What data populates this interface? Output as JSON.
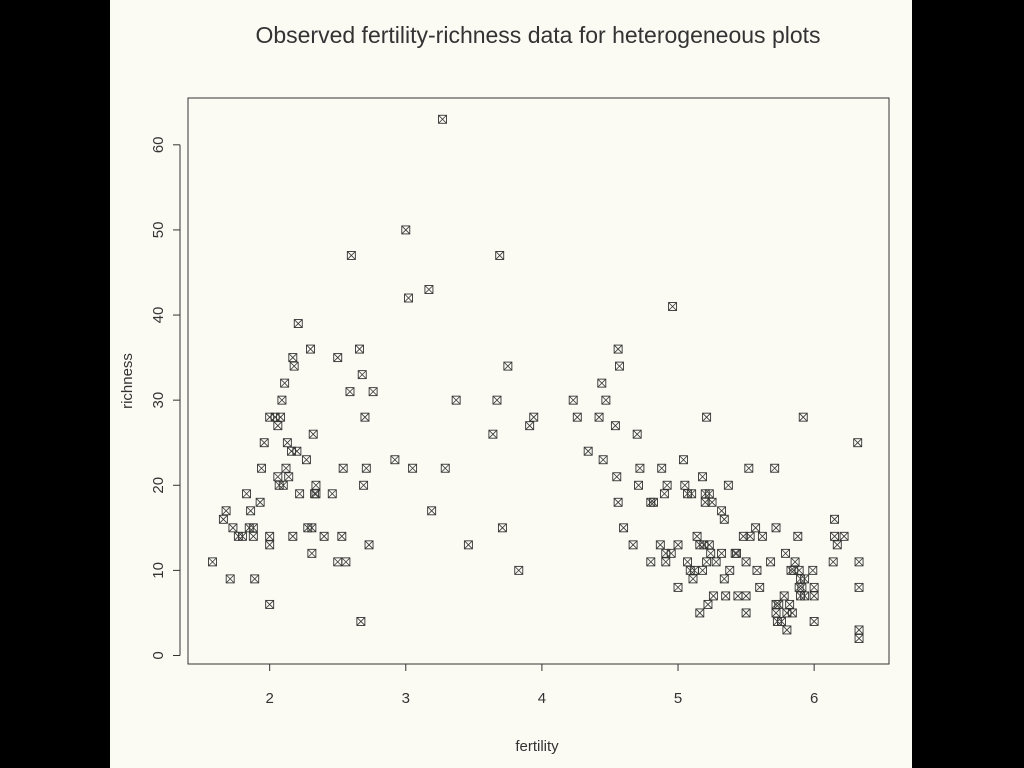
{
  "chart_data": {
    "type": "scatter",
    "title": "Observed fertility-richness data for heterogeneous plots",
    "xlabel": "fertility",
    "ylabel": "richness",
    "xlim": [
      1.4,
      6.55
    ],
    "ylim": [
      -1,
      65.5
    ],
    "xticks": [
      2,
      3,
      4,
      5,
      6
    ],
    "yticks": [
      0,
      10,
      20,
      30,
      40,
      50,
      60
    ],
    "marker": "boxed-x",
    "grid": false,
    "legend": "none",
    "colors": {
      "background": "#fbfbf4",
      "ink": "#333333",
      "frame": "#000000"
    },
    "points": [
      [
        1.58,
        11
      ],
      [
        1.66,
        16
      ],
      [
        1.68,
        17
      ],
      [
        1.71,
        9
      ],
      [
        1.73,
        15
      ],
      [
        1.77,
        14
      ],
      [
        1.8,
        14
      ],
      [
        1.83,
        19
      ],
      [
        1.85,
        15
      ],
      [
        1.86,
        17
      ],
      [
        1.88,
        15
      ],
      [
        1.88,
        14
      ],
      [
        1.89,
        9
      ],
      [
        1.93,
        18
      ],
      [
        1.94,
        22
      ],
      [
        1.96,
        25
      ],
      [
        2.0,
        28
      ],
      [
        2.0,
        14
      ],
      [
        2.0,
        13
      ],
      [
        2.0,
        6
      ],
      [
        2.04,
        28
      ],
      [
        2.06,
        27
      ],
      [
        2.06,
        21
      ],
      [
        2.07,
        20
      ],
      [
        2.08,
        28
      ],
      [
        2.09,
        30
      ],
      [
        2.1,
        20
      ],
      [
        2.11,
        32
      ],
      [
        2.12,
        22
      ],
      [
        2.13,
        25
      ],
      [
        2.14,
        21
      ],
      [
        2.16,
        24
      ],
      [
        2.17,
        14
      ],
      [
        2.17,
        35
      ],
      [
        2.18,
        34
      ],
      [
        2.2,
        24
      ],
      [
        2.21,
        39
      ],
      [
        2.22,
        19
      ],
      [
        2.27,
        23
      ],
      [
        2.28,
        15
      ],
      [
        2.3,
        36
      ],
      [
        2.31,
        15
      ],
      [
        2.31,
        12
      ],
      [
        2.32,
        26
      ],
      [
        2.33,
        19
      ],
      [
        2.34,
        20
      ],
      [
        2.34,
        19
      ],
      [
        2.4,
        14
      ],
      [
        2.46,
        19
      ],
      [
        2.5,
        35
      ],
      [
        2.5,
        11
      ],
      [
        2.53,
        14
      ],
      [
        2.54,
        22
      ],
      [
        2.56,
        11
      ],
      [
        2.59,
        31
      ],
      [
        2.6,
        47
      ],
      [
        2.66,
        36
      ],
      [
        2.67,
        4
      ],
      [
        2.68,
        33
      ],
      [
        2.69,
        20
      ],
      [
        2.7,
        28
      ],
      [
        2.71,
        22
      ],
      [
        2.73,
        13
      ],
      [
        2.76,
        31
      ],
      [
        2.92,
        23
      ],
      [
        3.0,
        50
      ],
      [
        3.02,
        42
      ],
      [
        3.05,
        22
      ],
      [
        3.17,
        43
      ],
      [
        3.19,
        17
      ],
      [
        3.27,
        63
      ],
      [
        3.29,
        22
      ],
      [
        3.37,
        30
      ],
      [
        3.46,
        13
      ],
      [
        3.64,
        26
      ],
      [
        3.67,
        30
      ],
      [
        3.69,
        47
      ],
      [
        3.71,
        15
      ],
      [
        3.75,
        34
      ],
      [
        3.83,
        10
      ],
      [
        3.91,
        27
      ],
      [
        3.94,
        28
      ],
      [
        4.23,
        30
      ],
      [
        4.26,
        28
      ],
      [
        4.34,
        24
      ],
      [
        4.42,
        28
      ],
      [
        4.44,
        32
      ],
      [
        4.45,
        23
      ],
      [
        4.47,
        30
      ],
      [
        4.54,
        27
      ],
      [
        4.55,
        21
      ],
      [
        4.56,
        18
      ],
      [
        4.56,
        36
      ],
      [
        4.57,
        34
      ],
      [
        4.6,
        15
      ],
      [
        4.67,
        13
      ],
      [
        4.7,
        26
      ],
      [
        4.71,
        20
      ],
      [
        4.72,
        22
      ],
      [
        4.8,
        11
      ],
      [
        4.8,
        18
      ],
      [
        4.82,
        18
      ],
      [
        4.87,
        13
      ],
      [
        4.88,
        22
      ],
      [
        4.9,
        19
      ],
      [
        4.91,
        11
      ],
      [
        4.91,
        12
      ],
      [
        4.92,
        20
      ],
      [
        4.95,
        12
      ],
      [
        4.96,
        41
      ],
      [
        5.0,
        8
      ],
      [
        5.0,
        13
      ],
      [
        5.04,
        23
      ],
      [
        5.05,
        20
      ],
      [
        5.07,
        11
      ],
      [
        5.07,
        19
      ],
      [
        5.09,
        10
      ],
      [
        5.1,
        19
      ],
      [
        5.11,
        9
      ],
      [
        5.12,
        10
      ],
      [
        5.14,
        14
      ],
      [
        5.16,
        5
      ],
      [
        5.16,
        13
      ],
      [
        5.18,
        21
      ],
      [
        5.18,
        10
      ],
      [
        5.19,
        13
      ],
      [
        5.2,
        19
      ],
      [
        5.2,
        18
      ],
      [
        5.21,
        28
      ],
      [
        5.21,
        11
      ],
      [
        5.22,
        6
      ],
      [
        5.23,
        19
      ],
      [
        5.23,
        13
      ],
      [
        5.24,
        12
      ],
      [
        5.25,
        18
      ],
      [
        5.26,
        7
      ],
      [
        5.28,
        11
      ],
      [
        5.32,
        17
      ],
      [
        5.32,
        12
      ],
      [
        5.34,
        16
      ],
      [
        5.34,
        9
      ],
      [
        5.35,
        7
      ],
      [
        5.37,
        20
      ],
      [
        5.38,
        10
      ],
      [
        5.42,
        12
      ],
      [
        5.43,
        12
      ],
      [
        5.44,
        7
      ],
      [
        5.48,
        14
      ],
      [
        5.5,
        11
      ],
      [
        5.5,
        7
      ],
      [
        5.5,
        5
      ],
      [
        5.52,
        22
      ],
      [
        5.53,
        14
      ],
      [
        5.57,
        15
      ],
      [
        5.58,
        10
      ],
      [
        5.6,
        8
      ],
      [
        5.62,
        14
      ],
      [
        5.68,
        11
      ],
      [
        5.71,
        22
      ],
      [
        5.72,
        15
      ],
      [
        5.72,
        6
      ],
      [
        5.72,
        5
      ],
      [
        5.73,
        4
      ],
      [
        5.74,
        6
      ],
      [
        5.76,
        4
      ],
      [
        5.78,
        7
      ],
      [
        5.79,
        12
      ],
      [
        5.8,
        3
      ],
      [
        5.8,
        5
      ],
      [
        5.82,
        6
      ],
      [
        5.83,
        10
      ],
      [
        5.84,
        5
      ],
      [
        5.85,
        10
      ],
      [
        5.86,
        11
      ],
      [
        5.88,
        14
      ],
      [
        5.89,
        10
      ],
      [
        5.89,
        8
      ],
      [
        5.9,
        7
      ],
      [
        5.9,
        9
      ],
      [
        5.91,
        8
      ],
      [
        5.92,
        28
      ],
      [
        5.93,
        7
      ],
      [
        5.93,
        9
      ],
      [
        5.99,
        10
      ],
      [
        6.0,
        8
      ],
      [
        6.0,
        7
      ],
      [
        6.0,
        4
      ],
      [
        6.14,
        11
      ],
      [
        6.15,
        16
      ],
      [
        6.15,
        14
      ],
      [
        6.17,
        13
      ],
      [
        6.22,
        14
      ],
      [
        6.32,
        25
      ],
      [
        6.33,
        11
      ],
      [
        6.33,
        8
      ],
      [
        6.33,
        3
      ],
      [
        6.33,
        2
      ]
    ]
  }
}
